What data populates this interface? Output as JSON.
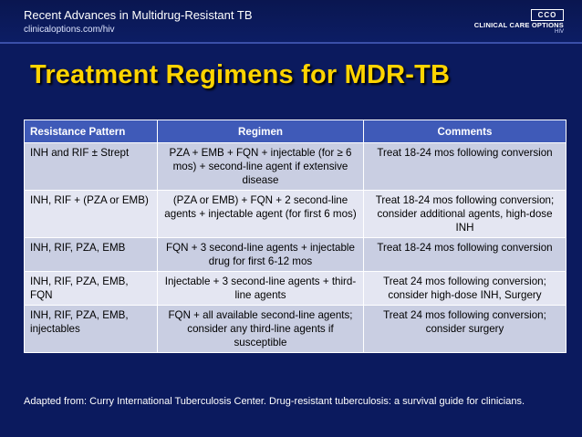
{
  "header": {
    "title": "Recent Advances in Multidrug-Resistant TB",
    "url": "clinicaloptions.com/hiv",
    "logo_badge": "CCO",
    "logo_text": "CLINICAL CARE OPTIONS",
    "logo_sub": "HIV"
  },
  "slide": {
    "title": "Treatment Regimens for MDR-TB"
  },
  "table": {
    "headers": [
      "Resistance Pattern",
      "Regimen",
      "Comments"
    ],
    "rows": [
      [
        "INH and RIF ± Strept",
        "PZA + EMB + FQN + injectable (for ≥ 6 mos) + second-line agent if extensive disease",
        "Treat 18-24 mos following conversion"
      ],
      [
        "INH, RIF + (PZA or EMB)",
        "(PZA or EMB) + FQN + 2 second-line agents + injectable agent (for first 6 mos)",
        "Treat 18-24 mos following conversion; consider additional agents, high-dose INH"
      ],
      [
        "INH, RIF, PZA, EMB",
        "FQN + 3 second-line agents + injectable drug for first 6-12 mos",
        "Treat 18-24 mos following conversion"
      ],
      [
        "INH, RIF, PZA, EMB, FQN",
        "Injectable + 3 second-line agents + third-line agents",
        "Treat 24 mos following conversion; consider high-dose INH, Surgery"
      ],
      [
        "INH, RIF, PZA, EMB, injectables",
        "FQN + all available second-line agents; consider any third-line agents if susceptible",
        "Treat 24 mos following conversion; consider surgery"
      ]
    ]
  },
  "footer": {
    "text": "Adapted from: Curry International Tuberculosis Center. Drug-resistant tuberculosis: a survival guide for clinicians."
  },
  "colors": {
    "background": "#0b1a5e",
    "title": "#ffd400",
    "table_header": "#3f5ab8",
    "row_odd": "#c9cee2",
    "row_even": "#e4e6f2"
  }
}
